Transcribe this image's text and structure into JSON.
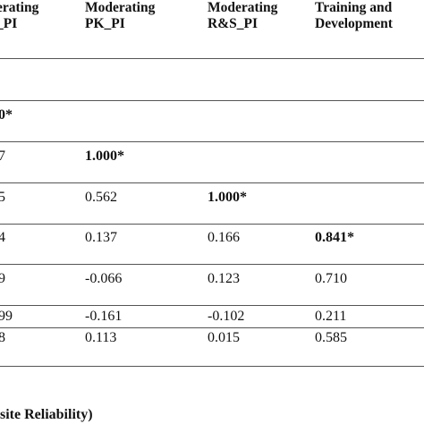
{
  "headers": [
    {
      "line1": "erating",
      "line2": "_PI"
    },
    {
      "line1": "Moderating",
      "line2": "PK_PI"
    },
    {
      "line1": "Moderating",
      "line2": "R&S_PI"
    },
    {
      "line1": "Training and",
      "line2": "Development"
    }
  ],
  "rows": [
    {
      "c0": "0*",
      "c1": "",
      "c2": "",
      "c3": ""
    },
    {
      "c0": "7",
      "c1": "1.000*",
      "c2": "",
      "c3": ""
    },
    {
      "c0": "5",
      "c1": "0.562",
      "c2": "1.000*",
      "c3": ""
    },
    {
      "c0": "4",
      "c1": "0.137",
      "c2": "0.166",
      "c3": "0.841*"
    },
    {
      "c0": "9",
      "c1": "-0.066",
      "c2": "0.123",
      "c3": "0.710"
    },
    {
      "c0": "99",
      "c1": "-0.161",
      "c2": "-0.102",
      "c3": "0.211"
    },
    {
      "c0": "8",
      "c1": "0.113",
      "c2": "0.015",
      "c3": "0.585"
    }
  ],
  "footer": "site Reliability)"
}
